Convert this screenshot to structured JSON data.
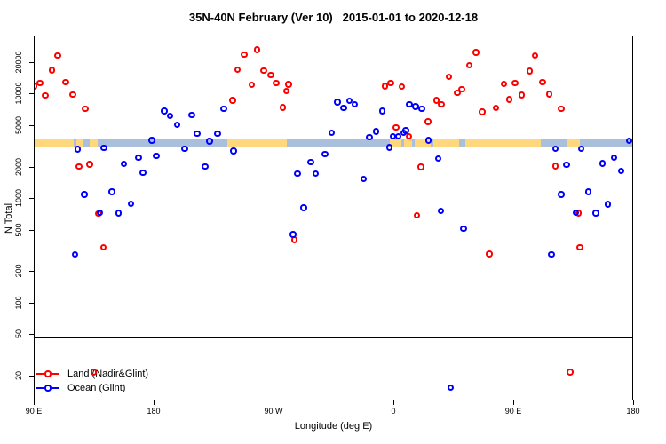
{
  "title": "35N-40N February (Ver 10)   2015-01-01 to 2020-12-18",
  "chart_data": {
    "type": "scatter",
    "title": "35N-40N February (Ver 10)   2015-01-01 to 2020-12-18",
    "xlabel": "Longitude (deg E)",
    "ylabel": "N Total",
    "y_scale": "log",
    "grid": "off",
    "x_axis": {
      "range": [
        90,
        540
      ],
      "note": "longitude unwrapped eastward: 90E to 180, then 90W, 0, 90E, 180",
      "ticks": [
        {
          "u": 90,
          "label": "90 E"
        },
        {
          "u": 180,
          "label": "180"
        },
        {
          "u": 270,
          "label": "90 W"
        },
        {
          "u": 360,
          "label": "0"
        },
        {
          "u": 450,
          "label": "90 E"
        },
        {
          "u": 540,
          "label": "180"
        }
      ]
    },
    "y_axis": {
      "range": [
        11.5,
        36000
      ],
      "ticks": [
        {
          "v": 20000,
          "label": "20000"
        },
        {
          "v": 10000,
          "label": "10000"
        },
        {
          "v": 5000,
          "label": "5000"
        },
        {
          "v": 2000,
          "label": "2000"
        },
        {
          "v": 1000,
          "label": "1000"
        },
        {
          "v": 500,
          "label": "500"
        },
        {
          "v": 200,
          "label": "200"
        },
        {
          "v": 100,
          "label": "100"
        },
        {
          "v": 50,
          "label": "50"
        },
        {
          "v": 20,
          "label": "20"
        }
      ]
    },
    "threshold_line": {
      "n": 48
    },
    "band": {
      "n_top": 3800,
      "n_bottom": 3150,
      "colors": {
        "land": "#FFD87E",
        "ocean": "#A9BFDB"
      },
      "segments": [
        [
          90,
          119.3,
          "land"
        ],
        [
          119.3,
          121.3,
          "ocean"
        ],
        [
          121.3,
          125.8,
          "land"
        ],
        [
          125.8,
          131.3,
          "ocean"
        ],
        [
          131.3,
          137.5,
          "land"
        ],
        [
          137.5,
          234.7,
          "ocean"
        ],
        [
          234.7,
          279.3,
          "land"
        ],
        [
          279.3,
          356.9,
          "ocean"
        ],
        [
          356.9,
          365.5,
          "land"
        ],
        [
          365.5,
          367.5,
          "ocean"
        ],
        [
          367.5,
          373.5,
          "land"
        ],
        [
          373.5,
          375.5,
          "ocean"
        ],
        [
          375.5,
          387,
          "land"
        ],
        [
          387,
          389.5,
          "ocean"
        ],
        [
          389.5,
          408.7,
          "land"
        ],
        [
          408.7,
          413.3,
          "ocean"
        ],
        [
          413.3,
          470,
          "land"
        ],
        [
          470,
          489.7,
          "ocean"
        ],
        [
          489.7,
          499.3,
          "land"
        ],
        [
          499.3,
          540,
          "ocean"
        ]
      ]
    },
    "legend": {
      "position": "bottom-left"
    },
    "series": [
      {
        "name": "Land (Nadir&Glint)",
        "color": "#FF0000",
        "points": [
          [
            89.8,
            12000
          ],
          [
            94,
            12800
          ],
          [
            103,
            17100
          ],
          [
            107.5,
            23500
          ],
          [
            113.5,
            13100
          ],
          [
            98,
            9760
          ],
          [
            118.7,
            10000
          ],
          [
            128,
            7270
          ],
          [
            123.5,
            2040
          ],
          [
            131.5,
            2150
          ],
          [
            138,
            723
          ],
          [
            141.8,
            344
          ],
          [
            134.2,
            22
          ],
          [
            238.7,
            8790
          ],
          [
            242.5,
            17300
          ],
          [
            247.3,
            24000
          ],
          [
            256.9,
            26800
          ],
          [
            253.1,
            12300
          ],
          [
            262,
            17000
          ],
          [
            267.5,
            15400
          ],
          [
            271.3,
            12800
          ],
          [
            280.7,
            12500
          ],
          [
            279.1,
            10800
          ],
          [
            276.2,
            7520
          ],
          [
            285.1,
            408
          ],
          [
            353.1,
            12000
          ],
          [
            357.3,
            12800
          ],
          [
            365.8,
            11900
          ],
          [
            361.3,
            4820
          ],
          [
            370.9,
            3960
          ],
          [
            376.9,
            695
          ],
          [
            380,
            2030
          ],
          [
            385.3,
            5500
          ],
          [
            391.8,
            8750
          ],
          [
            395.3,
            8000
          ],
          [
            401,
            14800
          ],
          [
            407.3,
            10400
          ],
          [
            410.7,
            11200
          ],
          [
            416.5,
            19000
          ],
          [
            421.3,
            25300
          ],
          [
            426,
            6820
          ],
          [
            431.3,
            298
          ],
          [
            436.5,
            7420
          ],
          [
            442.5,
            12600
          ],
          [
            446.2,
            8930
          ],
          [
            450.7,
            12800
          ],
          [
            455.8,
            9900
          ],
          [
            461.8,
            16700
          ],
          [
            465.8,
            23500
          ],
          [
            471.3,
            13100
          ],
          [
            476.5,
            10100
          ],
          [
            480.9,
            2070
          ],
          [
            485.3,
            7270
          ],
          [
            492,
            22
          ],
          [
            498.5,
            729
          ],
          [
            499.5,
            346
          ]
        ]
      },
      {
        "name": "Ocean (Glint)",
        "color": "#0000FF",
        "points": [
          [
            120.2,
            294
          ],
          [
            122.5,
            3000
          ],
          [
            127.5,
            1100
          ],
          [
            139.1,
            743
          ],
          [
            142,
            3080
          ],
          [
            148,
            1170
          ],
          [
            153.1,
            730
          ],
          [
            156.9,
            2180
          ],
          [
            162.5,
            904
          ],
          [
            168,
            2480
          ],
          [
            171.5,
            1790
          ],
          [
            178,
            3630
          ],
          [
            181.3,
            2570
          ],
          [
            187.5,
            6950
          ],
          [
            191.8,
            6270
          ],
          [
            196.9,
            5150
          ],
          [
            202.7,
            3020
          ],
          [
            208,
            6370
          ],
          [
            212,
            4240
          ],
          [
            218,
            2040
          ],
          [
            221.3,
            3560
          ],
          [
            227.5,
            4240
          ],
          [
            232,
            7280
          ],
          [
            239.3,
            2880
          ],
          [
            284,
            456
          ],
          [
            287.3,
            1750
          ],
          [
            292,
            820
          ],
          [
            297.5,
            2250
          ],
          [
            300.9,
            1750
          ],
          [
            308,
            2680
          ],
          [
            313.1,
            4320
          ],
          [
            317.5,
            8460
          ],
          [
            322,
            7420
          ],
          [
            326.5,
            8680
          ],
          [
            330.2,
            8020
          ],
          [
            336.9,
            1560
          ],
          [
            341.3,
            3920
          ],
          [
            346.5,
            4410
          ],
          [
            350.9,
            6950
          ],
          [
            356.2,
            3120
          ],
          [
            359.1,
            3960
          ],
          [
            362.9,
            3960
          ],
          [
            366.9,
            4320
          ],
          [
            368.7,
            4520
          ],
          [
            371.3,
            8000
          ],
          [
            376,
            7670
          ],
          [
            380.7,
            7280
          ],
          [
            385.8,
            3650
          ],
          [
            392.9,
            2430
          ],
          [
            395.1,
            767
          ],
          [
            402.5,
            15.6
          ],
          [
            412,
            519
          ],
          [
            478,
            294
          ],
          [
            480.9,
            3020
          ],
          [
            485.3,
            1100
          ],
          [
            489.3,
            2130
          ],
          [
            496.2,
            743
          ],
          [
            500.2,
            3040
          ],
          [
            505.8,
            1170
          ],
          [
            511.3,
            729
          ],
          [
            516.3,
            2190
          ],
          [
            520.2,
            892
          ],
          [
            525.1,
            2500
          ],
          [
            530.3,
            1860
          ],
          [
            536.2,
            3620
          ]
        ]
      }
    ]
  }
}
